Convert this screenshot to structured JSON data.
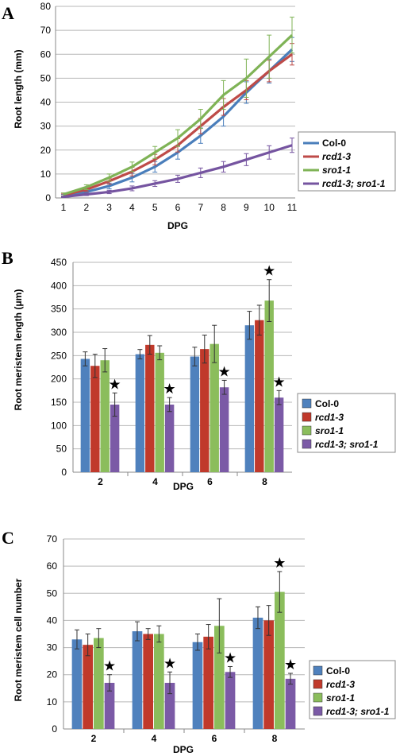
{
  "chart_data": [
    {
      "panel": "A",
      "type": "line",
      "xlabel": "DPG",
      "ylabel": "Root length (mm)",
      "x": [
        1,
        2,
        3,
        4,
        5,
        6,
        7,
        8,
        9,
        10,
        11
      ],
      "ylim": [
        0,
        80
      ],
      "yticks": [
        0,
        10,
        20,
        30,
        40,
        50,
        60,
        70,
        80
      ],
      "grid": true,
      "legend_position": "right",
      "series": [
        {
          "name": "Col-0",
          "name_style": "plain",
          "color": "#4a7ebb",
          "values": [
            1,
            2.5,
            5,
            8.5,
            13,
            19,
            26,
            34,
            44,
            53,
            62
          ],
          "errors": [
            0.5,
            0.8,
            1.2,
            1.8,
            2.2,
            2.8,
            3.2,
            4,
            4.5,
            5,
            5
          ]
        },
        {
          "name": "rcd1-3",
          "name_style": "italic",
          "color": "#be4b48",
          "values": [
            1.2,
            3.5,
            7,
            11,
            16,
            22,
            30,
            38,
            45,
            53,
            60
          ],
          "errors": [
            0.5,
            0.8,
            1.2,
            1.8,
            2.2,
            2.8,
            3.2,
            3.5,
            4,
            4.5,
            4.5
          ]
        },
        {
          "name": "sro1-1",
          "name_style": "italic",
          "color": "#7fb356",
          "values": [
            1.5,
            4.5,
            8.5,
            13,
            19,
            25,
            33,
            43,
            50,
            59,
            68
          ],
          "errors": [
            0.6,
            1,
            1.5,
            2,
            2.5,
            3.5,
            4,
            6,
            8,
            9,
            7.5
          ]
        },
        {
          "name": "rcd1-3; sro1-1",
          "name_style": "italic",
          "color": "#7554a0",
          "values": [
            0.5,
            1.5,
            2.5,
            4,
            6,
            8,
            10.5,
            13,
            16,
            19,
            22
          ],
          "errors": [
            0.3,
            0.5,
            0.7,
            1,
            1.2,
            1.5,
            2,
            2.2,
            2.5,
            2.8,
            3
          ]
        }
      ]
    },
    {
      "panel": "B",
      "type": "bar",
      "xlabel": "DPG",
      "ylabel": "Root meristem length (μm)",
      "categories": [
        "2",
        "4",
        "6",
        "8"
      ],
      "ylim": [
        0,
        450
      ],
      "yticks": [
        0,
        50,
        100,
        150,
        200,
        250,
        300,
        350,
        400,
        450
      ],
      "grid": true,
      "legend_position": "right",
      "star_marker": "★",
      "series": [
        {
          "name": "Col-0",
          "name_style": "plain",
          "color": "#4f81bd",
          "values": [
            243,
            253,
            248,
            315
          ],
          "errors": [
            15,
            10,
            20,
            30
          ],
          "stars": [
            false,
            false,
            false,
            false
          ]
        },
        {
          "name": "rcd1-3",
          "name_style": "italic",
          "color": "#c0392b",
          "values": [
            228,
            273,
            264,
            326
          ],
          "errors": [
            25,
            20,
            30,
            32
          ],
          "stars": [
            false,
            false,
            false,
            false
          ]
        },
        {
          "name": "sro1-1",
          "name_style": "italic",
          "color": "#8bbd5c",
          "values": [
            240,
            256,
            275,
            368
          ],
          "errors": [
            25,
            15,
            40,
            45
          ],
          "stars": [
            false,
            false,
            false,
            true
          ]
        },
        {
          "name": "rcd1-3; sro1-1",
          "name_style": "italic",
          "color": "#7b5aa6",
          "values": [
            145,
            145,
            182,
            160
          ],
          "errors": [
            25,
            15,
            15,
            15
          ],
          "stars": [
            true,
            true,
            true,
            true
          ]
        }
      ]
    },
    {
      "panel": "C",
      "type": "bar",
      "xlabel": "DPG",
      "ylabel": "Root meristem cell number",
      "categories": [
        "2",
        "4",
        "6",
        "8"
      ],
      "ylim": [
        0,
        70
      ],
      "yticks": [
        0,
        10,
        20,
        30,
        40,
        50,
        60,
        70
      ],
      "grid": true,
      "legend_position": "right",
      "star_marker": "★",
      "series": [
        {
          "name": "Col-0",
          "name_style": "plain",
          "color": "#4f81bd",
          "values": [
            33,
            36,
            32,
            41
          ],
          "errors": [
            3.5,
            3.5,
            3,
            4
          ],
          "stars": [
            false,
            false,
            false,
            false
          ]
        },
        {
          "name": "rcd1-3",
          "name_style": "italic",
          "color": "#c0392b",
          "values": [
            31,
            35,
            34,
            40
          ],
          "errors": [
            4,
            2,
            4.5,
            5.5
          ],
          "stars": [
            false,
            false,
            false,
            false
          ]
        },
        {
          "name": "sro1-1",
          "name_style": "italic",
          "color": "#8bbd5c",
          "values": [
            33.5,
            35,
            38,
            50.5
          ],
          "errors": [
            3.5,
            3,
            10,
            7.5
          ],
          "stars": [
            false,
            false,
            false,
            true
          ]
        },
        {
          "name": "rcd1-3; sro1-1",
          "name_style": "italic",
          "color": "#7b5aa6",
          "values": [
            17,
            17,
            21,
            18.5
          ],
          "errors": [
            3,
            4,
            2,
            2
          ],
          "stars": [
            true,
            true,
            true,
            true
          ]
        }
      ]
    }
  ]
}
